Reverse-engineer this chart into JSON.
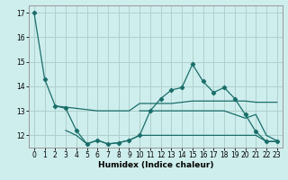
{
  "xlabel": "Humidex (Indice chaleur)",
  "bg_color": "#ceeeed",
  "grid_color": "#b0d0ce",
  "line_color": "#1a6e6a",
  "xlim_min": -0.5,
  "xlim_max": 23.5,
  "ylim_min": 11.5,
  "ylim_max": 17.3,
  "yticks": [
    12,
    13,
    14,
    15,
    16,
    17
  ],
  "xticks": [
    0,
    1,
    2,
    3,
    4,
    5,
    6,
    7,
    8,
    9,
    10,
    11,
    12,
    13,
    14,
    15,
    16,
    17,
    18,
    19,
    20,
    21,
    22,
    23
  ],
  "series": [
    {
      "x": [
        0,
        1,
        2,
        3,
        4,
        5,
        6,
        7,
        8,
        9,
        10,
        11,
        12,
        13,
        14,
        15,
        16,
        17,
        18,
        19,
        20,
        21,
        22,
        23
      ],
      "y": [
        17.0,
        14.3,
        13.2,
        13.1,
        12.2,
        11.65,
        11.8,
        11.65,
        11.7,
        11.8,
        12.0,
        13.0,
        13.5,
        13.85,
        13.95,
        14.9,
        14.2,
        13.75,
        13.95,
        13.5,
        12.85,
        12.15,
        11.75,
        11.75
      ],
      "markers": true
    },
    {
      "x": [
        2,
        3,
        4,
        5,
        6,
        7,
        8,
        9,
        10,
        11,
        12,
        13,
        14,
        15,
        16,
        17,
        18,
        19,
        20,
        21,
        22,
        23
      ],
      "y": [
        13.2,
        13.15,
        13.1,
        13.05,
        13.0,
        13.0,
        13.0,
        13.0,
        13.3,
        13.3,
        13.3,
        13.3,
        13.35,
        13.4,
        13.4,
        13.4,
        13.4,
        13.4,
        13.4,
        13.35,
        13.35,
        13.35
      ],
      "markers": false
    },
    {
      "x": [
        10,
        11,
        12,
        13,
        14,
        15,
        16,
        17,
        18,
        19,
        20,
        21,
        22,
        23
      ],
      "y": [
        13.0,
        13.0,
        13.0,
        13.0,
        13.0,
        13.0,
        13.0,
        13.0,
        13.0,
        12.85,
        12.7,
        12.85,
        12.0,
        11.78
      ],
      "markers": false
    },
    {
      "x": [
        3,
        4,
        5,
        6,
        7,
        8,
        9,
        10,
        11,
        12,
        13,
        14,
        15,
        16,
        17,
        18,
        19,
        20,
        21,
        22,
        23
      ],
      "y": [
        12.2,
        12.0,
        11.65,
        11.8,
        11.65,
        11.7,
        11.8,
        12.0,
        12.0,
        12.0,
        12.0,
        12.0,
        12.0,
        12.0,
        12.0,
        12.0,
        12.0,
        12.0,
        12.0,
        11.75,
        11.75
      ],
      "markers": false
    }
  ]
}
